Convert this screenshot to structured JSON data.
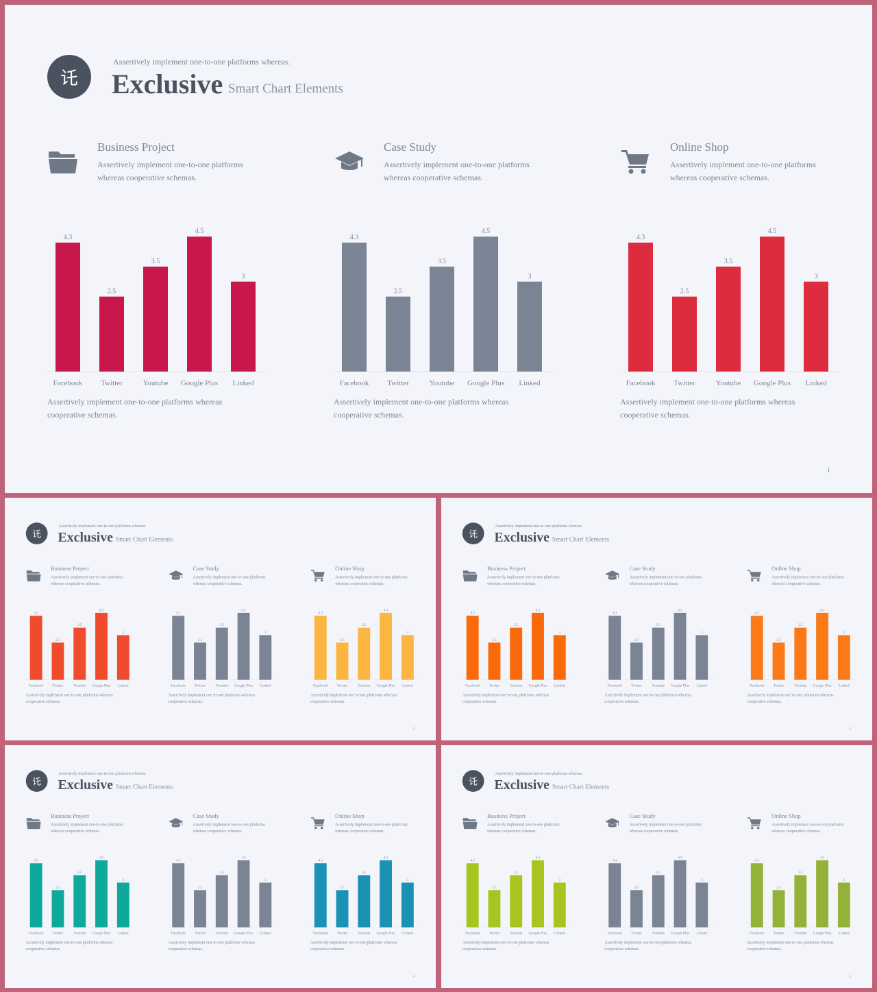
{
  "tagline": "Assertively implement one-to-one platforms whereas.",
  "title": "Exclusive",
  "subtitle": "Smart Chart Elements",
  "logo_glyph": "讬",
  "panels": [
    {
      "heading": "Business Project",
      "desc": "Assertively implement one-to-one platforms whereas cooperative schemas.",
      "icon": "folder-icon"
    },
    {
      "heading": "Case Study",
      "desc": "Assertively implement one-to-one platforms whereas cooperative schemas.",
      "icon": "graduation-cap-icon"
    },
    {
      "heading": "Online Shop",
      "desc": "Assertively implement one-to-one platforms whereas cooperative schemas.",
      "icon": "shopping-cart-icon"
    }
  ],
  "footnote": "Assertively implement one-to-one platforms whereas cooperative schemas.",
  "slides": [
    {
      "page_number": "1",
      "colors": [
        "#c8174a",
        "#7a8494",
        "#dc2c3d"
      ]
    },
    {
      "page_number": "2",
      "colors": [
        "#ef4b2c",
        "#7a8494",
        "#fbb540"
      ]
    },
    {
      "page_number": "2",
      "colors": [
        "#fb6a0a",
        "#7a8494",
        "#fb7a17"
      ]
    },
    {
      "page_number": "4",
      "colors": [
        "#10a89c",
        "#7a8494",
        "#1a92b4"
      ]
    },
    {
      "page_number": "5",
      "colors": [
        "#a7c51e",
        "#7a8494",
        "#94b23a"
      ]
    }
  ],
  "chart_data": {
    "type": "bar",
    "categories": [
      "Facebook",
      "Twitter",
      "Youtube",
      "Google Plus",
      "Linked"
    ],
    "values": [
      4.3,
      2.5,
      3.5,
      4.5,
      3
    ],
    "value_labels": [
      "4.3",
      "2.5",
      "3.5",
      "4.5",
      "3"
    ],
    "ylim": [
      0,
      4.8
    ],
    "grid": false,
    "title": "",
    "xlabel": "",
    "ylabel": ""
  }
}
